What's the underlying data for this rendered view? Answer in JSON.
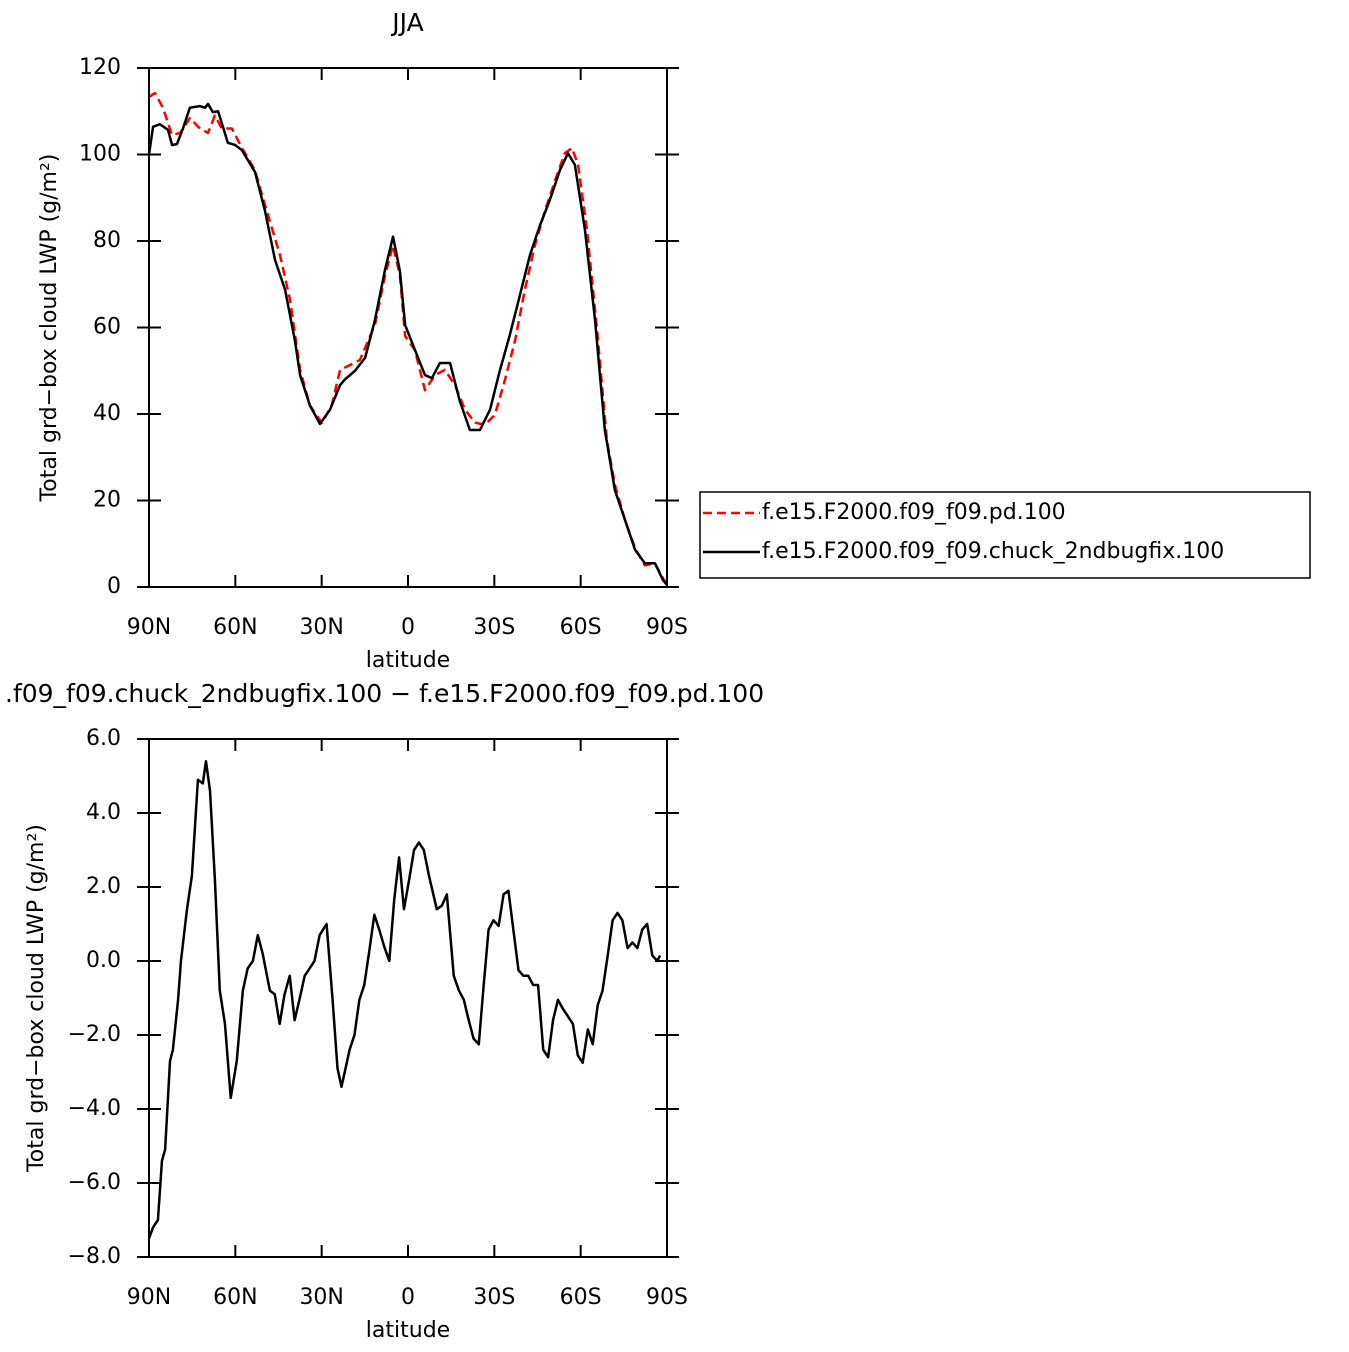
{
  "chart_data": [
    {
      "type": "line",
      "title": "JJA",
      "xlabel": "latitude",
      "ylabel": "Total grd−box cloud LWP (g/m²)",
      "xlim": [
        90,
        -90
      ],
      "xticks": [
        {
          "value": 90,
          "label": "90N"
        },
        {
          "value": 60,
          "label": "60N"
        },
        {
          "value": 30,
          "label": "30N"
        },
        0,
        {
          "value": -30,
          "label": "30S"
        },
        {
          "value": -60,
          "label": "60S"
        },
        {
          "value": -90,
          "label": "90S"
        }
      ],
      "ylim": [
        0,
        120
      ],
      "yticks": [
        0,
        20,
        40,
        60,
        80,
        100,
        120
      ],
      "legend": "outside-right",
      "series": [
        {
          "name": "f.e15.F2000.f09_f09.pd.100",
          "color": "#ff0000",
          "dashed": true,
          "x": [
            90,
            87.9,
            85.1,
            82.0,
            79.2,
            75.8,
            72.3,
            69.5,
            67.1,
            64.7,
            61.2,
            57.7,
            53.2,
            49.7,
            44.5,
            41.0,
            37.5,
            34.1,
            29.9,
            26.5,
            23.6,
            20.2,
            16.7,
            11.5,
            8.0,
            5.2,
            2.8,
            1.0,
            -2.4,
            -5.9,
            -9.4,
            -12.8,
            -16.3,
            -19.8,
            -23.3,
            -26.7,
            -30.2,
            -33.7,
            -37.2,
            -40.6,
            -44.1,
            -47.6,
            -51.1,
            -54.5,
            -57.0,
            -59.1,
            -62.2,
            -65.7,
            -69.1,
            -71.9,
            -75.4,
            -78.9,
            -82.3,
            -85.8,
            -88.6,
            -90
          ],
          "values": [
            113.3,
            114.2,
            110.7,
            104.5,
            105,
            108.4,
            106,
            105,
            109,
            106,
            106,
            101.5,
            96.4,
            88.3,
            76.8,
            66.4,
            50.2,
            42,
            37.9,
            42,
            50.2,
            51.3,
            52.5,
            60.6,
            72,
            79,
            72,
            58,
            54.8,
            45.5,
            49,
            50.2,
            46.7,
            41,
            38,
            37.5,
            39.8,
            47.9,
            57,
            68.7,
            79,
            87,
            94,
            100.3,
            101.5,
            97.6,
            82.5,
            59.4,
            34,
            23.6,
            15.5,
            9,
            5,
            5.5,
            2,
            0.5
          ]
        },
        {
          "name": "f.e15.F2000.f09_f09.chuck_2ndbugfix.100",
          "color": "#000000",
          "dashed": false,
          "x": [
            90,
            88.6,
            86.2,
            83.4,
            82.0,
            80.3,
            78.2,
            75.8,
            72.3,
            70.5,
            69.5,
            67.8,
            66.0,
            64.3,
            62.6,
            60.1,
            57.7,
            53.2,
            49.7,
            46.2,
            42.7,
            39.3,
            37.5,
            34.1,
            30.6,
            27.1,
            23.6,
            21.9,
            18.4,
            14.9,
            11.5,
            8.0,
            5.2,
            2.8,
            1.0,
            -2.4,
            -5.9,
            -8.3,
            -11.1,
            -14.6,
            -18.0,
            -21.5,
            -25.0,
            -28.5,
            -31.9,
            -35.4,
            -38.9,
            -42.4,
            -45.9,
            -49.3,
            -52.8,
            -55.6,
            -58.0,
            -61.5,
            -65.0,
            -68.4,
            -71.9,
            -75.4,
            -78.9,
            -82.3,
            -85.8,
            -88.6,
            -90
          ],
          "values": [
            100,
            106.4,
            107,
            105.7,
            102.2,
            102.4,
            106,
            110.8,
            111.2,
            110.8,
            111.7,
            109.8,
            110,
            106.4,
            102.7,
            102.2,
            101,
            96,
            87,
            75.6,
            68.7,
            57,
            49,
            42,
            37.7,
            41,
            46.7,
            48,
            50,
            53,
            61.7,
            73.3,
            81,
            73,
            60.6,
            54.8,
            49,
            48.3,
            51.8,
            51.8,
            43,
            36.3,
            36.3,
            41,
            50,
            58.3,
            67.5,
            76.8,
            83.7,
            89.5,
            96.4,
            100.3,
            97.6,
            82.5,
            61.7,
            36.3,
            22.4,
            15.5,
            8.6,
            5.5,
            5.5,
            1.6,
            0.5
          ]
        }
      ]
    },
    {
      "type": "line",
      "title": ".f09_f09.chuck_2ndbugfix.100 − f.e15.F2000.f09_f09.pd.100",
      "xlabel": "latitude",
      "ylabel": "Total grd−box cloud LWP (g/m²)",
      "xlim": [
        90,
        -90
      ],
      "xticks": [
        {
          "value": 90,
          "label": "90N"
        },
        {
          "value": 60,
          "label": "60N"
        },
        {
          "value": 30,
          "label": "30N"
        },
        0,
        {
          "value": -30,
          "label": "30S"
        },
        {
          "value": -60,
          "label": "60S"
        },
        {
          "value": -90,
          "label": "90S"
        }
      ],
      "ylim": [
        -8,
        6
      ],
      "yticks": [
        {
          "value": -8,
          "label": "−8.0"
        },
        {
          "value": -6,
          "label": "−6.0"
        },
        {
          "value": -4,
          "label": "−4.0"
        },
        {
          "value": -2,
          "label": "−2.0"
        },
        {
          "value": 0,
          "label": "0.0"
        },
        {
          "value": 2,
          "label": "2.0"
        },
        {
          "value": 4,
          "label": "4.0"
        },
        {
          "value": 6,
          "label": "6.0"
        }
      ],
      "x": [
        90,
        88.6,
        86.9,
        85.5,
        84.4,
        82.7,
        81.7,
        79.9,
        78.9,
        76.8,
        75.1,
        73.0,
        71.3,
        70.2,
        68.8,
        67.1,
        65.4,
        63.6,
        61.6,
        59.5,
        57.4,
        55.7,
        53.9,
        52.2,
        50.5,
        48.0,
        46.3,
        44.6,
        42.9,
        41.1,
        39.4,
        37.6,
        35.9,
        34.2,
        32.5,
        30.7,
        28.3,
        26.2,
        24.5,
        23.1,
        21.7,
        20.3,
        18.6,
        16.9,
        15.2,
        13.4,
        11.7,
        10.0,
        8.3,
        6.5,
        4.8,
        3.1,
        1.4,
        -0.4,
        -2.1,
        -3.8,
        -5.5,
        -7.3,
        -10.0,
        -11.8,
        -13.5,
        -15.9,
        -17.7,
        -19.4,
        -21.1,
        -22.8,
        -24.6,
        -26.3,
        -28.0,
        -29.7,
        -31.5,
        -33.2,
        -34.9,
        -36.6,
        -38.4,
        -40.1,
        -41.8,
        -43.5,
        -45.2,
        -47.0,
        -48.7,
        -50.4,
        -52.1,
        -53.9,
        -55.6,
        -57.3,
        -59.0,
        -60.7,
        -62.5,
        -64.2,
        -65.9,
        -67.6,
        -69.4,
        -71.1,
        -72.8,
        -74.5,
        -76.3,
        -78.0,
        -79.7,
        -81.4,
        -83.1,
        -84.9,
        -86.6,
        -87.6
      ],
      "series": [
        {
          "color": "#000000",
          "dashed": false,
          "values": [
            -7.5,
            -7.2,
            -7,
            -5.4,
            -5.1,
            -2.7,
            -2.4,
            -1.05,
            0,
            1.4,
            2.3,
            4.9,
            4.8,
            5.4,
            4.6,
            2.2,
            -0.8,
            -1.7,
            -3.7,
            -2.7,
            -0.8,
            -0.2,
            0,
            0.7,
            0.2,
            -0.8,
            -0.9,
            -1.7,
            -0.9,
            -0.4,
            -1.6,
            -1,
            -0.4,
            -0.2,
            0,
            0.7,
            1,
            -1.05,
            -2.9,
            -3.4,
            -2.9,
            -2.4,
            -2,
            -1.05,
            -0.65,
            0.3,
            1.25,
            0.85,
            0.4,
            0,
            1.65,
            2.8,
            1.4,
            2.2,
            3,
            3.2,
            3,
            2.3,
            1.4,
            1.5,
            1.8,
            -0.4,
            -0.8,
            -1.05,
            -1.6,
            -2.1,
            -2.25,
            -0.65,
            0.85,
            1.1,
            0.95,
            1.8,
            1.9,
            0.85,
            -0.25,
            -0.4,
            -0.4,
            -0.65,
            -0.65,
            -2.4,
            -2.6,
            -1.6,
            -1.05,
            -1.3,
            -1.5,
            -1.7,
            -2.55,
            -2.75,
            -1.85,
            -2.25,
            -1.2,
            -0.8,
            0.15,
            1.1,
            1.3,
            1.1,
            0.35,
            0.5,
            0.35,
            0.85,
            1,
            0.15,
            0,
            0.15
          ]
        }
      ]
    }
  ]
}
